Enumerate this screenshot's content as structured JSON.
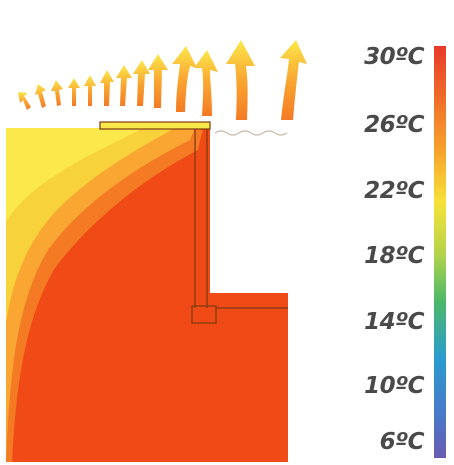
{
  "scale": {
    "labels": [
      "30ºC",
      "26ºC",
      "22ºC",
      "18ºC",
      "14ºC",
      "10ºC",
      "6ºC"
    ],
    "gradient": [
      "#e8392a",
      "#f06a2a",
      "#f7a52c",
      "#f7e23a",
      "#b7d44a",
      "#4cb86a",
      "#2a9bd0",
      "#4b78c8",
      "#6a5cb0"
    ]
  },
  "colors": {
    "hot": "#f04a16",
    "warm": "#f47a24",
    "mid": "#f9a632",
    "cool": "#f8d23a",
    "light": "#fbe84a",
    "line": "#7a3a10"
  },
  "icons": {
    "heat_flow": "heat-flow-arrow-icon"
  }
}
